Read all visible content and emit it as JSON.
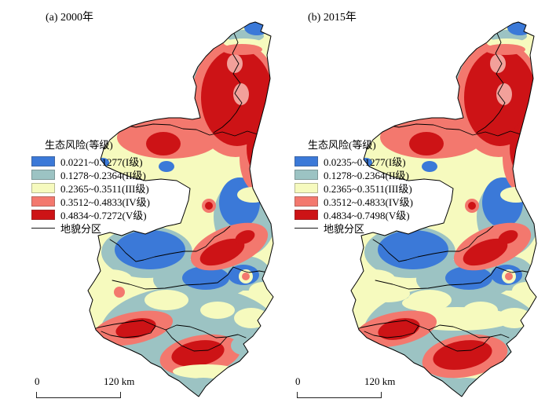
{
  "colors": {
    "level1": "#3B79D8",
    "level2": "#9CC3C3",
    "level3": "#F6FABE",
    "level4": "#F3786E",
    "level5": "#CD1316",
    "pink": "#F2A09A",
    "outline": "#1A1A1A"
  },
  "panels": [
    {
      "title": "(a) 2000年",
      "legend": {
        "title": "生态风险(等级)",
        "classes": [
          {
            "label": "0.0221~0.1277(I级)",
            "key": "level1"
          },
          {
            "label": "0.1278~0.2364(II级)",
            "key": "level2"
          },
          {
            "label": "0.2365~0.3511(III级)",
            "key": "level3"
          },
          {
            "label": "0.3512~0.4833(IV级)",
            "key": "level4"
          },
          {
            "label": "0.4834~0.7272(V级)",
            "key": "level5"
          }
        ],
        "line_label": "地貌分区"
      },
      "scalebar": {
        "zero": "0",
        "end": "120 km"
      }
    },
    {
      "title": "(b) 2015年",
      "legend": {
        "title": "生态风险(等级)",
        "classes": [
          {
            "label": "0.0235~0.1277(I级)",
            "key": "level1"
          },
          {
            "label": "0.1278~0.2364(II级)",
            "key": "level2"
          },
          {
            "label": "0.2365~0.3511(III级)",
            "key": "level3"
          },
          {
            "label": "0.3512~0.4833(IV级)",
            "key": "level4"
          },
          {
            "label": "0.4834~0.7498(V级)",
            "key": "level5"
          }
        ],
        "line_label": "地貌分区"
      },
      "scalebar": {
        "zero": "0",
        "end": "120 km"
      }
    }
  ]
}
